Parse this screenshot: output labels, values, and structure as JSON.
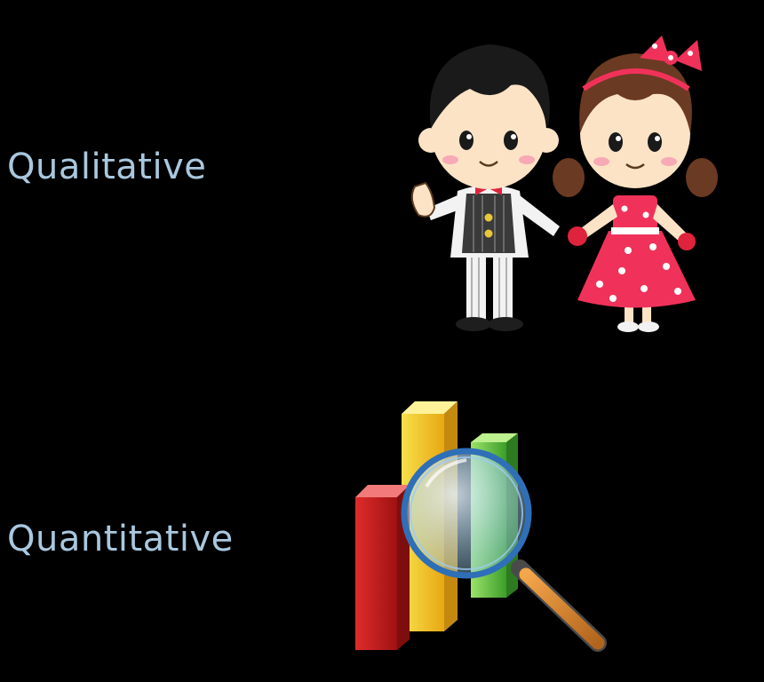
{
  "labels": {
    "qualitative": "Qualitative",
    "quantitative": "Quantitative"
  },
  "colors": {
    "background": "#000000",
    "label_text": "#A9C8DF"
  },
  "illustrations": {
    "qualitative": "cartoon-boy-and-girl-holding-hands",
    "quantitative": "bar-chart-with-magnifying-glass-icon"
  }
}
